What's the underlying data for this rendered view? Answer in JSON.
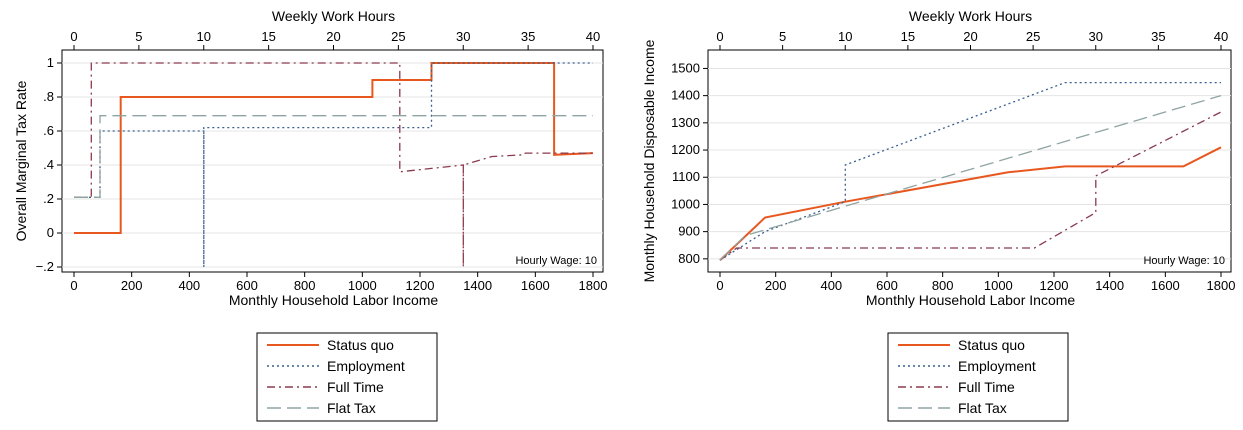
{
  "chart_data": [
    {
      "type": "line",
      "title": "",
      "xlabel": "Monthly Household Labor Income",
      "x2label": "Weekly Work Hours",
      "ylabel": "Overall Marginal Tax Rate",
      "xlim": [
        0,
        1800
      ],
      "x2lim": [
        0,
        40
      ],
      "ylim": [
        -0.2,
        1.0
      ],
      "xticks": [
        0,
        200,
        400,
        600,
        800,
        1000,
        1200,
        1400,
        1600,
        1800
      ],
      "x2ticks": [
        0,
        5,
        10,
        15,
        20,
        25,
        30,
        35,
        40
      ],
      "yticks": [
        {
          "value": 1,
          "label": "1"
        },
        {
          "value": 0.8,
          "label": ".8"
        },
        {
          "value": 0.6,
          "label": ".6"
        },
        {
          "value": 0.4,
          "label": ".4"
        },
        {
          "value": 0.2,
          "label": ".2"
        },
        {
          "value": 0,
          "label": "0"
        },
        {
          "value": -0.2,
          "label": "−.2"
        }
      ],
      "grid": true,
      "annotation": "Hourly Wage: 10",
      "series": [
        {
          "name": "Status quo",
          "color": "#e8571e",
          "dash": "solid",
          "x": [
            0,
            162,
            162,
            1035,
            1035,
            1240,
            1240,
            1665,
            1665,
            1800
          ],
          "y": [
            0,
            0,
            0.8,
            0.8,
            0.9,
            0.9,
            1.0,
            1.0,
            0.46,
            0.47
          ]
        },
        {
          "name": "Employment",
          "color": "#3a5f8f",
          "dash": "dot",
          "x": [
            0,
            90,
            90,
            450,
            450,
            450,
            450,
            1240,
            1240,
            1800
          ],
          "y": [
            0.21,
            0.21,
            0.6,
            0.6,
            -0.2,
            -0.2,
            0.62,
            0.62,
            1.0,
            1.0
          ]
        },
        {
          "name": "Full Time",
          "color": "#8a3a4e",
          "dash": "dashdot",
          "x": [
            0,
            60,
            60,
            1130,
            1130,
            1350,
            1350,
            1350,
            1350,
            1450,
            1560,
            1565,
            1800
          ],
          "y": [
            0.21,
            0.21,
            1.0,
            1.0,
            0.36,
            0.4,
            -0.2,
            -0.2,
            0.4,
            0.45,
            0.46,
            0.47,
            0.47
          ]
        },
        {
          "name": "Flat Tax",
          "color": "#8fa3a3",
          "dash": "longdash",
          "x": [
            0,
            90,
            90,
            1800
          ],
          "y": [
            0.21,
            0.21,
            0.69,
            0.69
          ]
        }
      ]
    },
    {
      "type": "line",
      "title": "",
      "xlabel": "Monthly Household Labor Income",
      "x2label": "Weekly Work Hours",
      "ylabel": "Monthly Household Disposable Income",
      "xlim": [
        0,
        1800
      ],
      "x2lim": [
        0,
        40
      ],
      "ylim": [
        770,
        1520
      ],
      "xticks": [
        0,
        200,
        400,
        600,
        800,
        1000,
        1200,
        1400,
        1600,
        1800
      ],
      "x2ticks": [
        0,
        5,
        10,
        15,
        20,
        25,
        30,
        35,
        40
      ],
      "yticks": [
        {
          "value": 800,
          "label": "800"
        },
        {
          "value": 900,
          "label": "900"
        },
        {
          "value": 1000,
          "label": "1000"
        },
        {
          "value": 1100,
          "label": "1100"
        },
        {
          "value": 1200,
          "label": "1200"
        },
        {
          "value": 1300,
          "label": "1300"
        },
        {
          "value": 1400,
          "label": "1400"
        },
        {
          "value": 1500,
          "label": "1500"
        }
      ],
      "grid": true,
      "annotation": "Hourly Wage: 10",
      "series": [
        {
          "name": "Status quo",
          "color": "#e8571e",
          "dash": "solid",
          "x": [
            0,
            162,
            450,
            1035,
            1240,
            1665,
            1800
          ],
          "y": [
            795,
            952,
            1010,
            1118,
            1140,
            1140,
            1210
          ]
        },
        {
          "name": "Employment",
          "color": "#3a5f8f",
          "dash": "dot",
          "x": [
            0,
            162,
            450,
            450,
            1240,
            1800
          ],
          "y": [
            795,
            900,
            1010,
            1145,
            1448,
            1448
          ]
        },
        {
          "name": "Full Time",
          "color": "#8a3a4e",
          "dash": "dashdot",
          "x": [
            0,
            60,
            1130,
            1350,
            1350,
            1800
          ],
          "y": [
            795,
            840,
            840,
            970,
            1105,
            1340
          ]
        },
        {
          "name": "Flat Tax",
          "color": "#8fa3a3",
          "dash": "longdash",
          "x": [
            0,
            90,
            1800
          ],
          "y": [
            795,
            885,
            1400
          ]
        }
      ]
    }
  ],
  "legend": {
    "items": [
      {
        "label": "Status quo"
      },
      {
        "label": "Employment"
      },
      {
        "label": "Full Time"
      },
      {
        "label": "Flat Tax"
      }
    ]
  }
}
